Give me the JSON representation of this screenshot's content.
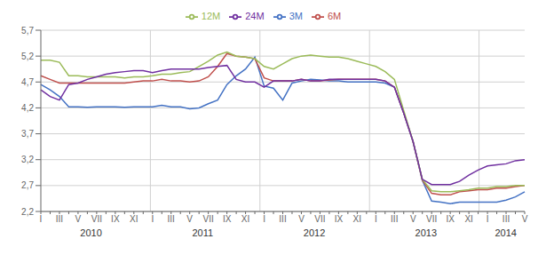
{
  "chart_data": {
    "type": "line",
    "categories": [
      "I",
      null,
      "III",
      null,
      "V",
      null,
      "VII",
      null,
      "IX",
      null,
      "XI",
      null,
      "I",
      null,
      "III",
      null,
      "V",
      null,
      "VII",
      null,
      "IX",
      null,
      "XI",
      null,
      "I",
      null,
      "III",
      null,
      "V",
      null,
      "VII",
      null,
      "IX",
      null,
      "XI",
      null,
      "I",
      null,
      "III",
      null,
      "V",
      null,
      "VII",
      null,
      "IX",
      null,
      "XI",
      null,
      "I",
      null,
      "III",
      null,
      "V"
    ],
    "series": [
      {
        "name": "3M",
        "color": "#4472c4",
        "values": [
          4.65,
          4.55,
          4.42,
          4.22,
          4.22,
          4.21,
          4.22,
          4.22,
          4.22,
          4.21,
          4.22,
          4.22,
          4.22,
          4.25,
          4.22,
          4.22,
          4.18,
          4.2,
          4.28,
          4.35,
          4.65,
          4.82,
          4.95,
          5.18,
          4.62,
          4.58,
          4.35,
          4.68,
          4.72,
          4.75,
          4.74,
          4.72,
          4.72,
          4.7,
          4.7,
          4.7,
          4.7,
          4.68,
          4.6,
          4.1,
          3.55,
          2.8,
          2.4,
          2.38,
          2.35,
          2.38,
          2.38,
          2.38,
          2.38,
          2.38,
          2.42,
          2.48,
          2.58
        ]
      },
      {
        "name": "6M",
        "color": "#c0504d",
        "values": [
          4.82,
          4.75,
          4.68,
          4.68,
          4.68,
          4.68,
          4.68,
          4.68,
          4.68,
          4.68,
          4.7,
          4.72,
          4.72,
          4.75,
          4.72,
          4.72,
          4.7,
          4.72,
          4.8,
          5.0,
          5.25,
          5.2,
          5.18,
          5.15,
          4.78,
          4.72,
          4.72,
          4.72,
          4.75,
          4.72,
          4.72,
          4.74,
          4.75,
          4.75,
          4.75,
          4.75,
          4.75,
          4.72,
          4.6,
          4.1,
          3.55,
          2.8,
          2.55,
          2.52,
          2.52,
          2.58,
          2.6,
          2.62,
          2.62,
          2.65,
          2.65,
          2.68,
          2.7
        ]
      },
      {
        "name": "12M",
        "color": "#9bbb59",
        "values": [
          5.12,
          5.12,
          5.08,
          4.82,
          4.82,
          4.8,
          4.8,
          4.8,
          4.8,
          4.78,
          4.8,
          4.8,
          4.82,
          4.85,
          4.85,
          4.88,
          4.9,
          5.0,
          5.1,
          5.22,
          5.28,
          5.2,
          5.18,
          5.15,
          5.0,
          4.95,
          5.05,
          5.15,
          5.2,
          5.22,
          5.2,
          5.18,
          5.18,
          5.15,
          5.1,
          5.05,
          5.0,
          4.9,
          4.75,
          4.15,
          3.55,
          2.82,
          2.6,
          2.58,
          2.58,
          2.6,
          2.62,
          2.65,
          2.65,
          2.68,
          2.68,
          2.7,
          2.7
        ]
      },
      {
        "name": "24M",
        "color": "#7030a0",
        "values": [
          4.55,
          4.42,
          4.35,
          4.65,
          4.68,
          4.75,
          4.8,
          4.85,
          4.88,
          4.9,
          4.92,
          4.92,
          4.88,
          4.92,
          4.95,
          4.95,
          4.95,
          4.95,
          4.98,
          5.0,
          5.02,
          4.75,
          4.7,
          4.7,
          4.6,
          4.72,
          4.72,
          4.72,
          4.75,
          4.72,
          4.72,
          4.75,
          4.75,
          4.75,
          4.75,
          4.75,
          4.75,
          4.72,
          4.6,
          4.1,
          3.55,
          2.82,
          2.72,
          2.72,
          2.72,
          2.78,
          2.9,
          3.0,
          3.08,
          3.1,
          3.12,
          3.18,
          3.2
        ]
      }
    ],
    "ylim": [
      2.2,
      5.7
    ],
    "yticks": [
      {
        "value": 2.2,
        "label": "2,2"
      },
      {
        "value": 2.7,
        "label": "2,7"
      },
      {
        "value": 3.2,
        "label": "3,2"
      },
      {
        "value": 3.7,
        "label": "3,7"
      },
      {
        "value": 4.2,
        "label": "4,2"
      },
      {
        "value": 4.7,
        "label": "4,7"
      },
      {
        "value": 5.2,
        "label": "5,2"
      },
      {
        "value": 5.7,
        "label": "5,7"
      }
    ],
    "grid": true,
    "legend": "top",
    "annotations": [
      "2010",
      "2011",
      "2012",
      "2013",
      "2014"
    ]
  }
}
